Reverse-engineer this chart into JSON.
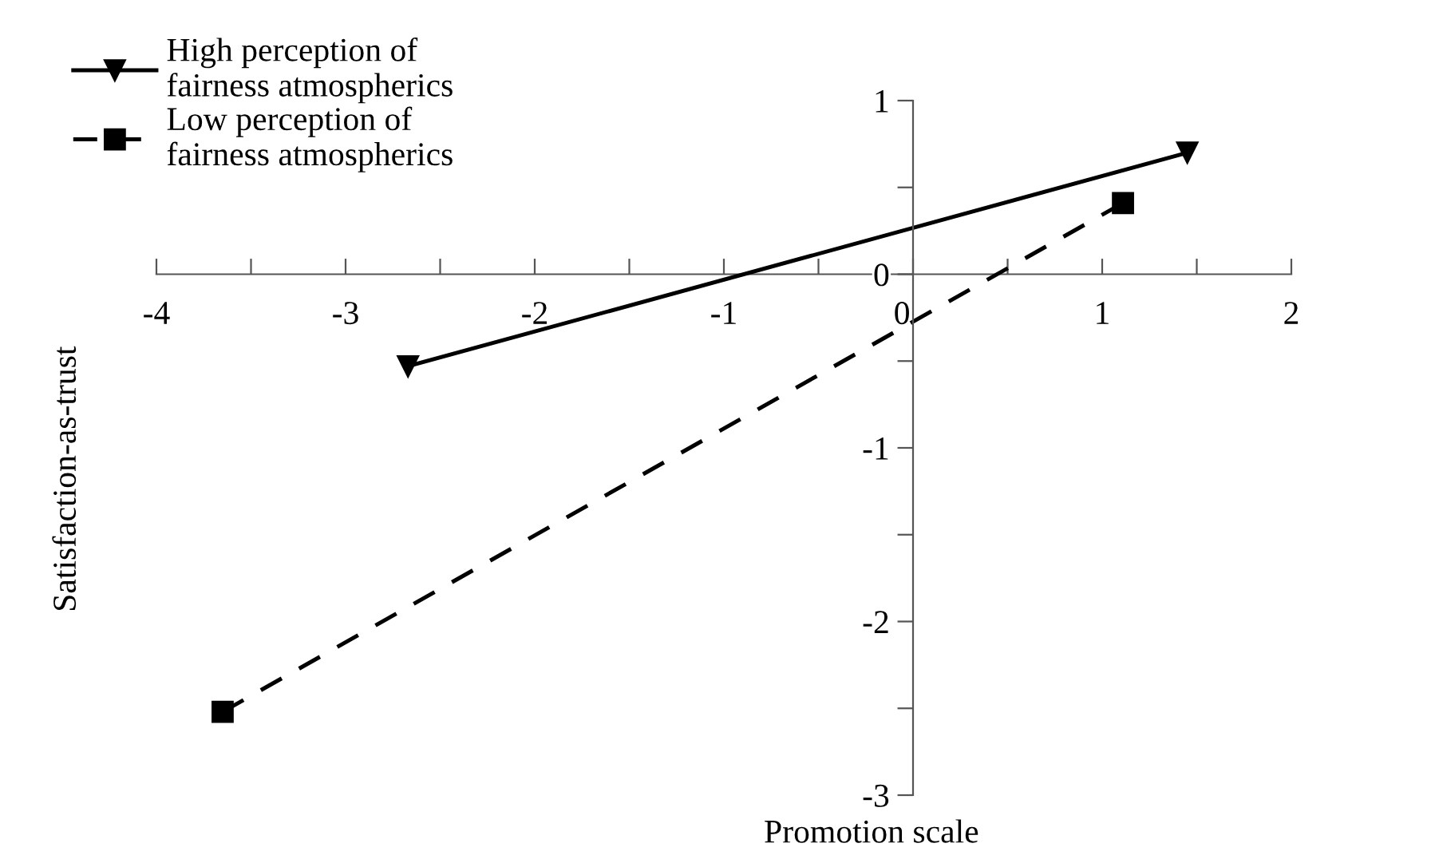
{
  "chart_data": {
    "type": "line",
    "xlabel": "Promotion scale",
    "ylabel": "Satisfaction-as-trust",
    "series": [
      {
        "name": "High perception of\nfairness atmospherics",
        "color": "#000000",
        "x": [
          -2.67,
          1.45
        ],
        "values": [
          -0.53,
          0.7
        ],
        "marker": "triangle",
        "line_style": "solid"
      },
      {
        "name": "Low perception of\nfairness atmospherics",
        "color": "#000000",
        "x": [
          -3.65,
          1.11
        ],
        "values": [
          -2.52,
          0.41
        ],
        "marker": "square",
        "line_style": "dashed"
      }
    ],
    "xlim": [
      -4,
      2
    ],
    "ylim": [
      -3,
      1
    ],
    "xticks": [
      -4,
      {
        "value": -3.5,
        "label": null
      },
      -3,
      {
        "value": -2.5,
        "label": null
      },
      -2,
      {
        "value": -1.5,
        "label": null
      },
      -1,
      {
        "value": -0.5,
        "label": null
      },
      0,
      {
        "value": 0.5,
        "label": null
      },
      1,
      {
        "value": 1.5,
        "label": null
      },
      2
    ],
    "yticks": [
      -3,
      {
        "value": -2.5,
        "label": null
      },
      -2,
      {
        "value": -1.5,
        "label": null
      },
      -1,
      {
        "value": -0.5,
        "label": null
      },
      0,
      {
        "value": 0.5,
        "label": null
      },
      1
    ],
    "grid": false,
    "legend": "top left"
  }
}
